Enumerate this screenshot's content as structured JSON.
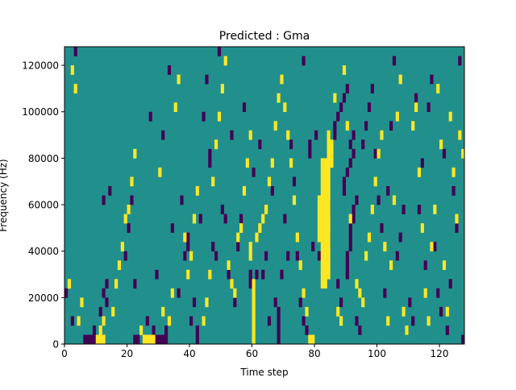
{
  "chart_data": {
    "type": "heatmap",
    "title": "Predicted : Gma",
    "xlabel": "Time step",
    "ylabel": "Frequency (Hz)",
    "xlim": [
      0,
      128
    ],
    "ylim": [
      0,
      128000
    ],
    "x_ticks": [
      0,
      20,
      40,
      60,
      80,
      100,
      120
    ],
    "x_tick_labels": [
      "0",
      "20",
      "40",
      "60",
      "80",
      "100",
      "120"
    ],
    "y_ticks": [
      0,
      20000,
      40000,
      60000,
      80000,
      100000,
      120000
    ],
    "y_tick_labels": [
      "0",
      "20000",
      "40000",
      "60000",
      "80000",
      "100000",
      "120000"
    ],
    "n_time_steps": 128,
    "n_freq_bins": 32,
    "freq_bin_width": 4000,
    "grid": false,
    "colormap": "viridis",
    "levels": [
      {
        "value": -1,
        "color": "#440154"
      },
      {
        "value": 0,
        "color": "#21908d"
      },
      {
        "value": 1,
        "color": "#fde725"
      }
    ],
    "background_value": 0,
    "cells_low": [
      [
        0,
        5
      ],
      [
        2,
        2
      ],
      [
        3,
        31
      ],
      [
        9,
        1
      ],
      [
        6,
        0
      ],
      [
        7,
        0
      ],
      [
        8,
        0
      ],
      [
        9,
        0
      ],
      [
        10,
        0
      ],
      [
        12,
        15
      ],
      [
        13,
        4
      ],
      [
        14,
        16
      ],
      [
        11,
        3
      ],
      [
        12,
        5
      ],
      [
        13,
        6
      ],
      [
        19,
        9
      ],
      [
        20,
        12
      ],
      [
        21,
        15
      ],
      [
        22,
        6
      ],
      [
        22,
        0
      ],
      [
        23,
        0
      ],
      [
        26,
        2
      ],
      [
        27,
        24
      ],
      [
        28,
        1
      ],
      [
        29,
        7
      ],
      [
        29,
        0
      ],
      [
        30,
        0
      ],
      [
        31,
        0
      ],
      [
        32,
        0
      ],
      [
        32,
        1
      ],
      [
        31,
        22
      ],
      [
        33,
        29
      ],
      [
        34,
        12
      ],
      [
        36,
        5
      ],
      [
        37,
        15
      ],
      [
        38,
        9
      ],
      [
        39,
        10
      ],
      [
        39,
        11
      ],
      [
        40,
        2
      ],
      [
        41,
        4
      ],
      [
        42,
        1
      ],
      [
        42,
        0
      ],
      [
        43,
        13
      ],
      [
        44,
        24
      ],
      [
        45,
        28
      ],
      [
        46,
        19
      ],
      [
        46,
        20
      ],
      [
        47,
        10
      ],
      [
        48,
        9
      ],
      [
        49,
        31
      ],
      [
        50,
        14
      ],
      [
        51,
        13
      ],
      [
        52,
        7
      ],
      [
        53,
        22
      ],
      [
        54,
        4
      ],
      [
        55,
        10
      ],
      [
        56,
        13
      ],
      [
        57,
        25
      ],
      [
        59,
        6
      ],
      [
        59,
        7
      ],
      [
        60,
        18
      ],
      [
        61,
        7
      ],
      [
        62,
        21
      ],
      [
        63,
        7
      ],
      [
        64,
        9
      ],
      [
        65,
        2
      ],
      [
        66,
        16
      ],
      [
        67,
        4
      ],
      [
        68,
        0
      ],
      [
        68,
        1
      ],
      [
        68,
        2
      ],
      [
        68,
        3
      ],
      [
        69,
        7
      ],
      [
        70,
        13
      ],
      [
        71,
        9
      ],
      [
        72,
        21
      ],
      [
        73,
        17
      ],
      [
        74,
        9
      ],
      [
        75,
        4
      ],
      [
        76,
        2
      ],
      [
        76,
        30
      ],
      [
        77,
        1
      ],
      [
        78,
        20
      ],
      [
        78,
        21
      ],
      [
        79,
        10
      ],
      [
        80,
        22
      ],
      [
        81,
        9
      ],
      [
        87,
        6
      ],
      [
        88,
        4
      ],
      [
        89,
        16
      ],
      [
        90,
        7
      ],
      [
        90,
        8
      ],
      [
        90,
        9
      ],
      [
        91,
        10
      ],
      [
        91,
        11
      ],
      [
        91,
        12
      ],
      [
        92,
        13
      ],
      [
        92,
        14
      ],
      [
        93,
        15
      ],
      [
        89,
        17
      ],
      [
        90,
        18
      ],
      [
        91,
        19
      ],
      [
        92,
        20
      ],
      [
        91,
        21
      ],
      [
        92,
        22
      ],
      [
        93,
        2
      ],
      [
        94,
        1
      ],
      [
        95,
        21
      ],
      [
        96,
        23
      ],
      [
        97,
        25
      ],
      [
        98,
        27
      ],
      [
        99,
        20
      ],
      [
        100,
        15
      ],
      [
        101,
        12
      ],
      [
        102,
        5
      ],
      [
        103,
        16
      ],
      [
        104,
        23
      ],
      [
        105,
        30
      ],
      [
        106,
        9
      ],
      [
        107,
        11
      ],
      [
        108,
        14
      ],
      [
        109,
        1
      ],
      [
        110,
        4
      ],
      [
        111,
        2
      ],
      [
        112,
        26
      ],
      [
        113,
        14
      ],
      [
        114,
        19
      ],
      [
        115,
        8
      ],
      [
        116,
        25
      ],
      [
        117,
        28
      ],
      [
        118,
        10
      ],
      [
        119,
        5
      ],
      [
        120,
        3
      ],
      [
        121,
        20
      ],
      [
        122,
        1
      ],
      [
        123,
        6
      ],
      [
        124,
        16
      ],
      [
        125,
        12
      ],
      [
        126,
        30
      ],
      [
        127,
        0
      ],
      [
        86,
        22
      ],
      [
        86,
        23
      ],
      [
        87,
        24
      ],
      [
        88,
        25
      ],
      [
        89,
        26
      ],
      [
        90,
        27
      ]
    ],
    "cells_high": [
      [
        1,
        6
      ],
      [
        2,
        29
      ],
      [
        3,
        27
      ],
      [
        4,
        2
      ],
      [
        5,
        4
      ],
      [
        10,
        0
      ],
      [
        11,
        0
      ],
      [
        12,
        0
      ],
      [
        11,
        1
      ],
      [
        12,
        2
      ],
      [
        15,
        3
      ],
      [
        16,
        6
      ],
      [
        17,
        8
      ],
      [
        18,
        10
      ],
      [
        19,
        13
      ],
      [
        20,
        14
      ],
      [
        21,
        17
      ],
      [
        22,
        20
      ],
      [
        24,
        1
      ],
      [
        25,
        0
      ],
      [
        26,
        0
      ],
      [
        27,
        0
      ],
      [
        28,
        0
      ],
      [
        30,
        18
      ],
      [
        31,
        3
      ],
      [
        33,
        2
      ],
      [
        34,
        5
      ],
      [
        35,
        25
      ],
      [
        36,
        28
      ],
      [
        38,
        11
      ],
      [
        39,
        7
      ],
      [
        40,
        9
      ],
      [
        41,
        13
      ],
      [
        42,
        16
      ],
      [
        44,
        2
      ],
      [
        45,
        4
      ],
      [
        46,
        7
      ],
      [
        47,
        17
      ],
      [
        48,
        21
      ],
      [
        49,
        24
      ],
      [
        50,
        27
      ],
      [
        51,
        30
      ],
      [
        52,
        8
      ],
      [
        53,
        6
      ],
      [
        54,
        5
      ],
      [
        55,
        11
      ],
      [
        56,
        12
      ],
      [
        57,
        16
      ],
      [
        58,
        19
      ],
      [
        59,
        22
      ],
      [
        59,
        9
      ],
      [
        59,
        10
      ],
      [
        60,
        0
      ],
      [
        60,
        1
      ],
      [
        60,
        2
      ],
      [
        60,
        3
      ],
      [
        60,
        4
      ],
      [
        60,
        5
      ],
      [
        60,
        6
      ],
      [
        61,
        11
      ],
      [
        62,
        12
      ],
      [
        63,
        13
      ],
      [
        64,
        14
      ],
      [
        65,
        17
      ],
      [
        66,
        19
      ],
      [
        67,
        23
      ],
      [
        68,
        26
      ],
      [
        69,
        28
      ],
      [
        70,
        25
      ],
      [
        71,
        22
      ],
      [
        72,
        19
      ],
      [
        73,
        15
      ],
      [
        74,
        11
      ],
      [
        75,
        8
      ],
      [
        76,
        5
      ],
      [
        77,
        3
      ],
      [
        78,
        0
      ],
      [
        79,
        0
      ],
      [
        81,
        11
      ],
      [
        81,
        12
      ],
      [
        81,
        13
      ],
      [
        81,
        14
      ],
      [
        81,
        15
      ],
      [
        82,
        6
      ],
      [
        82,
        7
      ],
      [
        82,
        8
      ],
      [
        82,
        9
      ],
      [
        82,
        10
      ],
      [
        82,
        11
      ],
      [
        82,
        12
      ],
      [
        82,
        13
      ],
      [
        82,
        14
      ],
      [
        82,
        15
      ],
      [
        82,
        16
      ],
      [
        82,
        17
      ],
      [
        82,
        18
      ],
      [
        82,
        19
      ],
      [
        83,
        6
      ],
      [
        83,
        7
      ],
      [
        83,
        8
      ],
      [
        83,
        9
      ],
      [
        83,
        10
      ],
      [
        83,
        11
      ],
      [
        83,
        12
      ],
      [
        83,
        13
      ],
      [
        83,
        14
      ],
      [
        83,
        15
      ],
      [
        83,
        16
      ],
      [
        83,
        17
      ],
      [
        83,
        18
      ],
      [
        83,
        19
      ],
      [
        84,
        7
      ],
      [
        84,
        8
      ],
      [
        84,
        9
      ],
      [
        84,
        10
      ],
      [
        84,
        11
      ],
      [
        84,
        12
      ],
      [
        84,
        13
      ],
      [
        84,
        14
      ],
      [
        84,
        15
      ],
      [
        84,
        16
      ],
      [
        84,
        17
      ],
      [
        84,
        18
      ],
      [
        84,
        19
      ],
      [
        84,
        20
      ],
      [
        84,
        21
      ],
      [
        84,
        22
      ],
      [
        85,
        19
      ],
      [
        85,
        20
      ],
      [
        85,
        21
      ],
      [
        86,
        26
      ],
      [
        87,
        3
      ],
      [
        88,
        2
      ],
      [
        89,
        29
      ],
      [
        90,
        23
      ],
      [
        91,
        13
      ],
      [
        93,
        6
      ],
      [
        94,
        5
      ],
      [
        95,
        4
      ],
      [
        96,
        9
      ],
      [
        97,
        11
      ],
      [
        98,
        14
      ],
      [
        99,
        17
      ],
      [
        100,
        20
      ],
      [
        101,
        22
      ],
      [
        102,
        10
      ],
      [
        103,
        2
      ],
      [
        104,
        8
      ],
      [
        105,
        15
      ],
      [
        106,
        24
      ],
      [
        107,
        28
      ],
      [
        108,
        3
      ],
      [
        109,
        1
      ],
      [
        111,
        23
      ],
      [
        112,
        25
      ],
      [
        113,
        18
      ],
      [
        114,
        12
      ],
      [
        115,
        5
      ],
      [
        116,
        2
      ],
      [
        117,
        10
      ],
      [
        118,
        14
      ],
      [
        119,
        27
      ],
      [
        120,
        21
      ],
      [
        121,
        8
      ],
      [
        122,
        3
      ],
      [
        123,
        24
      ],
      [
        124,
        18
      ],
      [
        125,
        13
      ],
      [
        126,
        22
      ],
      [
        127,
        20
      ]
    ]
  }
}
